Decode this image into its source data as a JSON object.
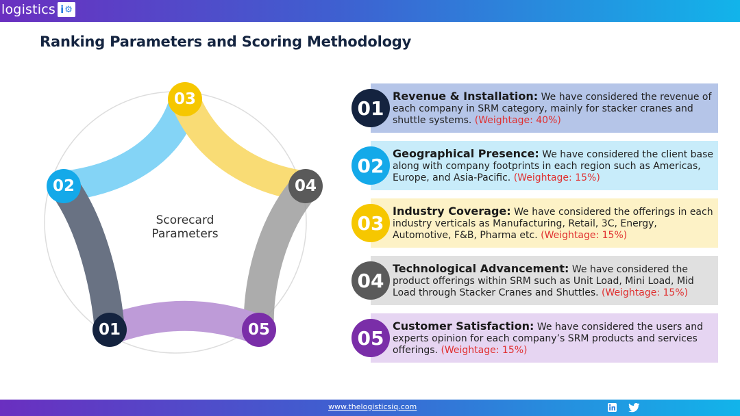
{
  "header": {
    "logo_text": "logistics",
    "logo_badge": "i"
  },
  "title": "Ranking Parameters and Scoring Methodology",
  "diagram": {
    "center_label_line1": "Scorecard",
    "center_label_line2": "Parameters",
    "nodes": [
      {
        "label": "01",
        "color": "#14233f"
      },
      {
        "label": "02",
        "color": "#14a9e9"
      },
      {
        "label": "03",
        "color": "#f6c700"
      },
      {
        "label": "04",
        "color": "#5a5a5a"
      },
      {
        "label": "05",
        "color": "#7a2ea8"
      }
    ],
    "segment_colors": {
      "02-03": "#6fcdf5",
      "03-04": "#f8d75e",
      "04-05": "#9e9e9e",
      "05-01": "#b38ad2",
      "01-02": "#4f5a6e"
    }
  },
  "cards": [
    {
      "num": "01",
      "title": "Revenue & Installation:",
      "text": " We have considered the revenue of each company in SRM category, mainly for stacker cranes and shuttle systems. ",
      "weight": "(Weightage: 40%)",
      "circle_color": "#14233f",
      "bg": "#b5c5e8"
    },
    {
      "num": "02",
      "title": "Geographical Presence:",
      "text": " We have considered the client base along with company footprints in each region such as Americas, Europe, and Asia-Pacific. ",
      "weight": "(Weightage: 15%)",
      "circle_color": "#14a9e9",
      "bg": "#c8ecfa"
    },
    {
      "num": "03",
      "title": "Industry Coverage:",
      "text": " We have considered the offerings in each industry verticals as Manufacturing, Retail, 3C, Energy, Automotive, F&B, Pharma etc. ",
      "weight": "(Weightage: 15%)",
      "circle_color": "#f6c700",
      "bg": "#fdf2c6"
    },
    {
      "num": "04",
      "title": "Technological Advancement:",
      "text": " We have considered the product offerings within SRM such as Unit Load, Mini Load, Mid Load through Stacker Cranes and Shuttles. ",
      "weight": "(Weightage: 15%)",
      "circle_color": "#5a5a5a",
      "bg": "#e0e0e0"
    },
    {
      "num": "05",
      "title": "Customer Satisfaction:",
      "text": " We have considered the users and experts opinion for each company’s SRM products and services offerings. ",
      "weight": "(Weightage: 15%)",
      "circle_color": "#7a2ea8",
      "bg": "#e6d5f2"
    }
  ],
  "footer": {
    "url": "www.thelogisticsiq.com",
    "icons": [
      "linkedin-icon",
      "twitter-icon"
    ]
  }
}
